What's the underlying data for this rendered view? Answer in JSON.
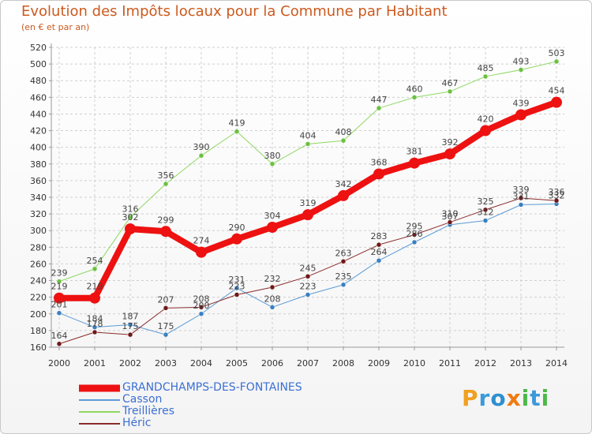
{
  "header": {
    "title": "Evolution des Impôts locaux pour la Commune par Habitant",
    "subtitle": "(en € et par an)"
  },
  "logo": {
    "text": "Proxiti",
    "letters": [
      {
        "ch": "P",
        "color": "#f0a020"
      },
      {
        "ch": "r",
        "color": "#3b9ad9"
      },
      {
        "ch": "o",
        "color": "#2e8fd0"
      },
      {
        "ch": "x",
        "color": "#f07a10"
      },
      {
        "ch": "i",
        "color": "#4cb848"
      },
      {
        "ch": "t",
        "color": "#3b9ad9"
      },
      {
        "ch": "i",
        "color": "#4cb848"
      }
    ]
  },
  "chart_data": {
    "type": "line",
    "title": "Evolution des Impôts locaux pour la Commune par Habitant",
    "subtitle": "(en € et par an)",
    "xlabel": "",
    "ylabel": "",
    "ylim": [
      160,
      520
    ],
    "ytick_step": 20,
    "grid": true,
    "legend_position": "bottom-left",
    "x": [
      "2000",
      "2001",
      "2002",
      "2003",
      "2004",
      "2005",
      "2006",
      "2007",
      "2008",
      "2009",
      "2010",
      "2011",
      "2012",
      "2013",
      "2014"
    ],
    "series": [
      {
        "name": "Treillières",
        "color": "#8ed860",
        "marker": "#6cc040",
        "width": 1,
        "values": [
          239,
          254,
          316,
          356,
          390,
          419,
          380,
          404,
          408,
          447,
          460,
          467,
          485,
          493,
          503
        ]
      },
      {
        "name": "Casson",
        "color": "#5b9bd5",
        "marker": "#3a7fc0",
        "width": 1,
        "values": [
          201,
          184,
          187,
          175,
          200,
          231,
          208,
          223,
          235,
          264,
          286,
          307,
          312,
          331,
          332
        ]
      },
      {
        "name": "Héric",
        "color": "#8a2b2b",
        "marker": "#6e1818",
        "width": 1,
        "values": [
          164,
          178,
          175,
          207,
          208,
          223,
          232,
          245,
          263,
          283,
          295,
          310,
          325,
          339,
          336
        ]
      },
      {
        "name": "GRANDCHAMPS-DES-FONTAINES",
        "color": "#ee1111",
        "marker": "#ee1111",
        "width": 8,
        "values": [
          219,
          219,
          302,
          299,
          274,
          290,
          304,
          319,
          342,
          368,
          381,
          392,
          420,
          439,
          454
        ]
      }
    ],
    "legend_order": [
      "GRANDCHAMPS-DES-FONTAINES",
      "Casson",
      "Treillières",
      "Héric"
    ]
  }
}
